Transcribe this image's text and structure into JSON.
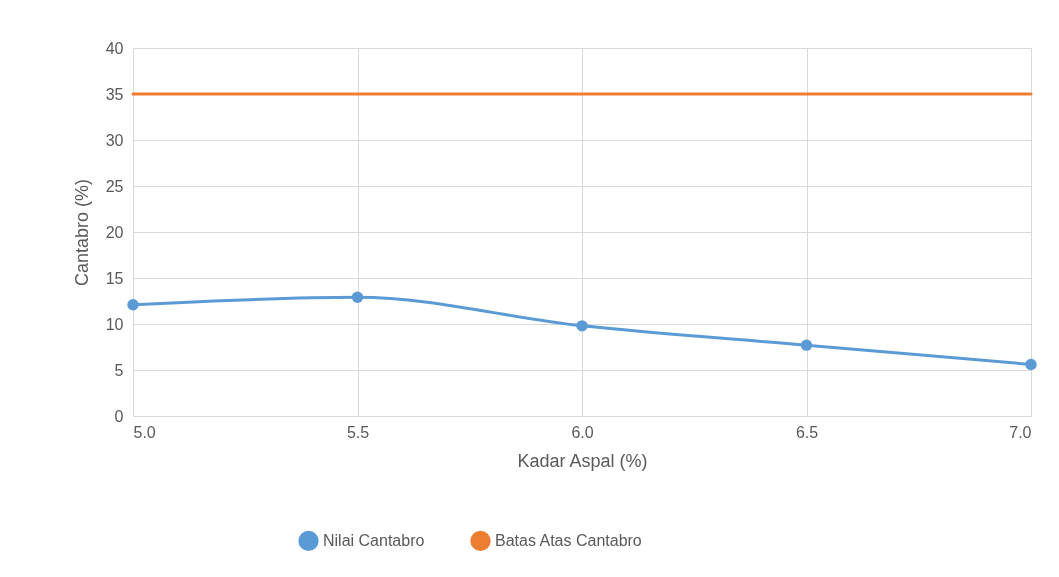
{
  "chart_data": {
    "type": "line",
    "xlabel": "Kadar Aspal (%)",
    "ylabel": "Cantabro (%)",
    "x": [
      5.0,
      5.5,
      6.0,
      6.5,
      7.0
    ],
    "series": [
      {
        "name": "Nilai Cantabro",
        "color": "#5b9bd5",
        "values": [
          12.1,
          12.9,
          9.8,
          7.7,
          5.6
        ]
      },
      {
        "name": "Batas Atas Cantabro",
        "color": "#ed7d31",
        "values": [
          35,
          35,
          35,
          35,
          35
        ],
        "marker": "none"
      }
    ],
    "xlim": [
      5,
      7
    ],
    "xticks": [
      {
        "value": 5,
        "label": "5.0"
      },
      {
        "value": 5.5,
        "label": "5.5"
      },
      {
        "value": 6,
        "label": "6.0"
      },
      {
        "value": 6.5,
        "label": "6.5"
      },
      {
        "value": 7,
        "label": "7.0"
      }
    ],
    "ylim": [
      0,
      40
    ],
    "yticks": [
      0,
      5,
      10,
      15,
      20,
      25,
      30,
      35,
      40
    ],
    "grid": true,
    "legend": "bottom",
    "marker": "circle",
    "line_style": "solid"
  }
}
